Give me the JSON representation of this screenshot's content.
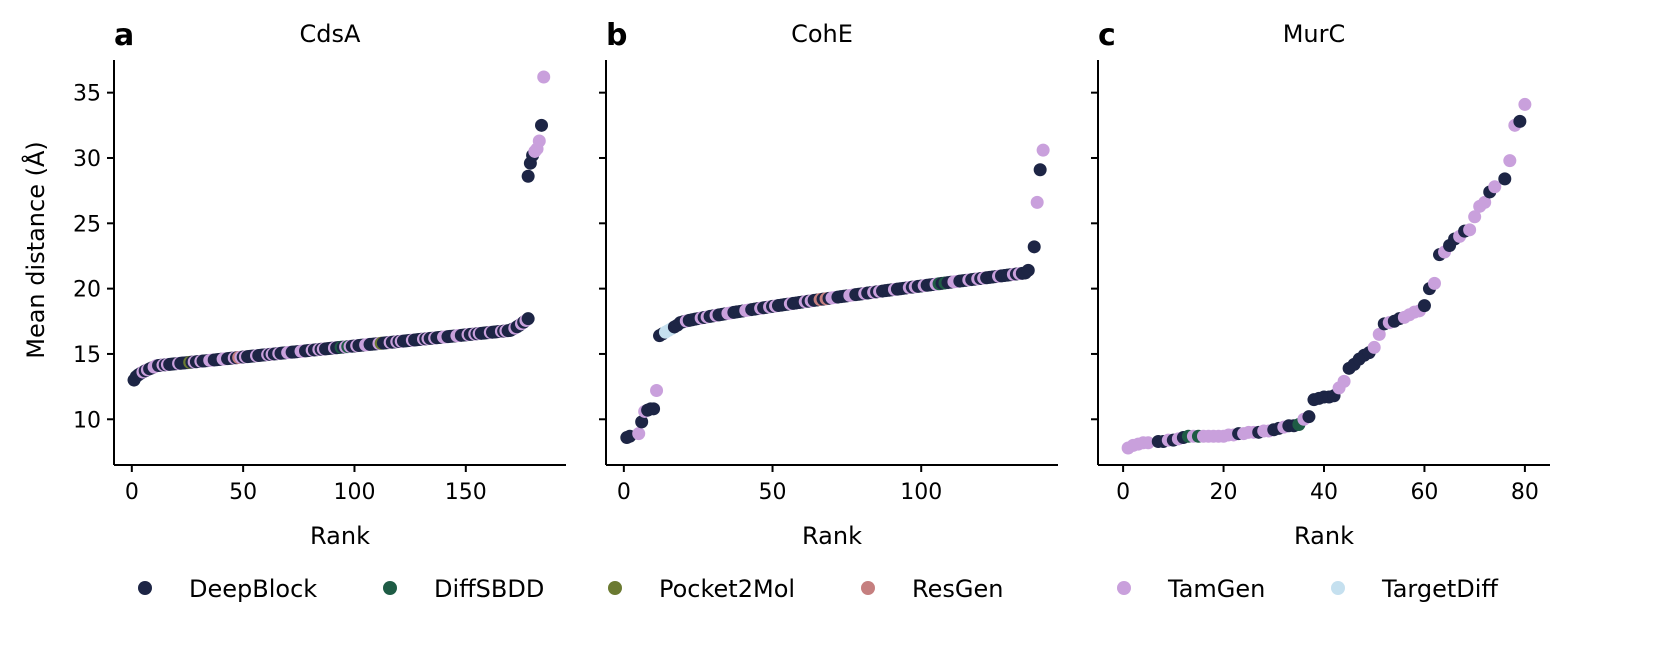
{
  "chart_data": {
    "type": "scatter",
    "ylabel": "Mean distance (Å)",
    "xlabel": "Rank",
    "series_names": [
      "DeepBlock",
      "DiffSBDD",
      "Pocket2Mol",
      "ResGen",
      "TamGen",
      "TargetDiff"
    ],
    "colors": {
      "DeepBlock": "#1d2545",
      "DiffSBDD": "#1e5c45",
      "Pocket2Mol": "#6b7a31",
      "ResGen": "#c57f7f",
      "TamGen": "#c9a0dc",
      "TargetDiff": "#c5e0ef"
    },
    "legend_position": "bottom",
    "ylim": [
      6.5,
      37.5
    ],
    "yticks": [
      10,
      15,
      20,
      25,
      30,
      35
    ],
    "panels": [
      {
        "letter": "a",
        "title": "CdsA",
        "xlim": [
          -8,
          195
        ],
        "xticks": [
          0,
          50,
          100,
          150
        ],
        "segments": [
          {
            "x0": 1,
            "x1": 10,
            "y0": 13.0,
            "y1": 14.0,
            "curve": 0.6
          },
          {
            "x0": 11,
            "x1": 170,
            "y0": 14.1,
            "y1": 16.8,
            "curve": 1.0
          },
          {
            "x0": 171,
            "x1": 178,
            "y0": 16.9,
            "y1": 17.7,
            "curve": 1.2
          }
        ],
        "points": [
          {
            "x": 178,
            "y": 28.6,
            "s": "DeepBlock"
          },
          {
            "x": 179,
            "y": 29.6,
            "s": "DeepBlock"
          },
          {
            "x": 180,
            "y": 30.2,
            "s": "DeepBlock"
          },
          {
            "x": 181,
            "y": 30.5,
            "s": "TamGen"
          },
          {
            "x": 182,
            "y": 30.7,
            "s": "TamGen"
          },
          {
            "x": 183,
            "y": 31.3,
            "s": "TamGen"
          },
          {
            "x": 184,
            "y": 32.5,
            "s": "DeepBlock"
          },
          {
            "x": 185,
            "y": 36.2,
            "s": "TamGen"
          }
        ],
        "special": [
          {
            "x": 26,
            "s": "Pocket2Mol"
          },
          {
            "x": 48,
            "s": "ResGen"
          },
          {
            "x": 94,
            "s": "DiffSBDD"
          },
          {
            "x": 97,
            "s": "DiffSBDD"
          },
          {
            "x": 112,
            "s": "Pocket2Mol"
          }
        ]
      },
      {
        "letter": "b",
        "title": "CohE",
        "xlim": [
          -6,
          146
        ],
        "xticks": [
          0,
          50,
          100
        ],
        "segments": [
          {
            "x0": 12,
            "x1": 18,
            "y0": 16.4,
            "y1": 17.2,
            "curve": 1.0
          },
          {
            "x0": 19,
            "x1": 135,
            "y0": 17.4,
            "y1": 21.2,
            "curve": 0.85
          }
        ],
        "points": [
          {
            "x": 1,
            "y": 8.6,
            "s": "DeepBlock"
          },
          {
            "x": 2,
            "y": 8.7,
            "s": "DeepBlock"
          },
          {
            "x": 5,
            "y": 8.9,
            "s": "TamGen"
          },
          {
            "x": 6,
            "y": 9.8,
            "s": "DeepBlock"
          },
          {
            "x": 7,
            "y": 10.6,
            "s": "TamGen"
          },
          {
            "x": 8,
            "y": 10.7,
            "s": "DeepBlock"
          },
          {
            "x": 9,
            "y": 10.8,
            "s": "DeepBlock"
          },
          {
            "x": 10,
            "y": 10.8,
            "s": "DeepBlock"
          },
          {
            "x": 11,
            "y": 12.2,
            "s": "TamGen"
          },
          {
            "x": 136,
            "y": 21.4,
            "s": "DeepBlock"
          },
          {
            "x": 138,
            "y": 23.2,
            "s": "DeepBlock"
          },
          {
            "x": 139,
            "y": 26.6,
            "s": "TamGen"
          },
          {
            "x": 140,
            "y": 29.1,
            "s": "DeepBlock"
          },
          {
            "x": 141,
            "y": 30.6,
            "s": "TamGen"
          }
        ],
        "special": [
          {
            "x": 14,
            "s": "TargetDiff"
          },
          {
            "x": 15,
            "s": "TargetDiff"
          },
          {
            "x": 16,
            "s": "TargetDiff"
          },
          {
            "x": 66,
            "s": "ResGen"
          },
          {
            "x": 68,
            "s": "ResGen"
          },
          {
            "x": 106,
            "s": "DiffSBDD"
          },
          {
            "x": 108,
            "s": "DiffSBDD"
          }
        ]
      },
      {
        "letter": "c",
        "title": "MurC",
        "xlim": [
          -5,
          85
        ],
        "xticks": [
          0,
          20,
          40,
          60,
          80
        ],
        "segments": [],
        "points": [
          {
            "x": 1,
            "y": 7.8,
            "s": "TamGen"
          },
          {
            "x": 2,
            "y": 8.0,
            "s": "TamGen"
          },
          {
            "x": 3,
            "y": 8.1,
            "s": "TamGen"
          },
          {
            "x": 4,
            "y": 8.2,
            "s": "TamGen"
          },
          {
            "x": 5,
            "y": 8.2,
            "s": "TamGen"
          },
          {
            "x": 7,
            "y": 8.3,
            "s": "DeepBlock"
          },
          {
            "x": 8,
            "y": 8.3,
            "s": "DeepBlock"
          },
          {
            "x": 9,
            "y": 8.4,
            "s": "TamGen"
          },
          {
            "x": 10,
            "y": 8.4,
            "s": "DeepBlock"
          },
          {
            "x": 11,
            "y": 8.5,
            "s": "TamGen"
          },
          {
            "x": 12,
            "y": 8.6,
            "s": "DeepBlock"
          },
          {
            "x": 13,
            "y": 8.7,
            "s": "DiffSBDD"
          },
          {
            "x": 14,
            "y": 8.7,
            "s": "TamGen"
          },
          {
            "x": 15,
            "y": 8.7,
            "s": "DiffSBDD"
          },
          {
            "x": 16,
            "y": 8.7,
            "s": "TamGen"
          },
          {
            "x": 17,
            "y": 8.7,
            "s": "TamGen"
          },
          {
            "x": 18,
            "y": 8.7,
            "s": "TamGen"
          },
          {
            "x": 19,
            "y": 8.7,
            "s": "TamGen"
          },
          {
            "x": 20,
            "y": 8.7,
            "s": "TamGen"
          },
          {
            "x": 21,
            "y": 8.8,
            "s": "TamGen"
          },
          {
            "x": 22,
            "y": 8.8,
            "s": "TamGen"
          },
          {
            "x": 23,
            "y": 8.9,
            "s": "DeepBlock"
          },
          {
            "x": 24,
            "y": 8.9,
            "s": "TamGen"
          },
          {
            "x": 25,
            "y": 9.0,
            "s": "TamGen"
          },
          {
            "x": 26,
            "y": 9.0,
            "s": "TamGen"
          },
          {
            "x": 27,
            "y": 9.0,
            "s": "DeepBlock"
          },
          {
            "x": 28,
            "y": 9.1,
            "s": "TamGen"
          },
          {
            "x": 29,
            "y": 9.1,
            "s": "TamGen"
          },
          {
            "x": 30,
            "y": 9.2,
            "s": "DeepBlock"
          },
          {
            "x": 31,
            "y": 9.3,
            "s": "DeepBlock"
          },
          {
            "x": 32,
            "y": 9.4,
            "s": "TamGen"
          },
          {
            "x": 33,
            "y": 9.5,
            "s": "DeepBlock"
          },
          {
            "x": 34,
            "y": 9.5,
            "s": "DeepBlock"
          },
          {
            "x": 35,
            "y": 9.6,
            "s": "DiffSBDD"
          },
          {
            "x": 36,
            "y": 10.0,
            "s": "TamGen"
          },
          {
            "x": 37,
            "y": 10.2,
            "s": "DeepBlock"
          },
          {
            "x": 38,
            "y": 11.5,
            "s": "DeepBlock"
          },
          {
            "x": 39,
            "y": 11.6,
            "s": "DeepBlock"
          },
          {
            "x": 40,
            "y": 11.7,
            "s": "DeepBlock"
          },
          {
            "x": 41,
            "y": 11.7,
            "s": "DeepBlock"
          },
          {
            "x": 42,
            "y": 11.8,
            "s": "DeepBlock"
          },
          {
            "x": 43,
            "y": 12.4,
            "s": "TamGen"
          },
          {
            "x": 44,
            "y": 12.9,
            "s": "TamGen"
          },
          {
            "x": 45,
            "y": 13.9,
            "s": "DeepBlock"
          },
          {
            "x": 46,
            "y": 14.2,
            "s": "DeepBlock"
          },
          {
            "x": 47,
            "y": 14.6,
            "s": "DeepBlock"
          },
          {
            "x": 48,
            "y": 14.9,
            "s": "DeepBlock"
          },
          {
            "x": 49,
            "y": 15.1,
            "s": "DeepBlock"
          },
          {
            "x": 50,
            "y": 15.5,
            "s": "TamGen"
          },
          {
            "x": 51,
            "y": 16.5,
            "s": "TamGen"
          },
          {
            "x": 52,
            "y": 17.3,
            "s": "DeepBlock"
          },
          {
            "x": 53,
            "y": 17.4,
            "s": "TamGen"
          },
          {
            "x": 54,
            "y": 17.5,
            "s": "DeepBlock"
          },
          {
            "x": 55,
            "y": 17.7,
            "s": "DeepBlock"
          },
          {
            "x": 56,
            "y": 17.8,
            "s": "TamGen"
          },
          {
            "x": 57,
            "y": 18.0,
            "s": "TamGen"
          },
          {
            "x": 58,
            "y": 18.2,
            "s": "TamGen"
          },
          {
            "x": 59,
            "y": 18.3,
            "s": "TamGen"
          },
          {
            "x": 60,
            "y": 18.7,
            "s": "DeepBlock"
          },
          {
            "x": 61,
            "y": 20.0,
            "s": "DeepBlock"
          },
          {
            "x": 62,
            "y": 20.4,
            "s": "TamGen"
          },
          {
            "x": 63,
            "y": 22.6,
            "s": "DeepBlock"
          },
          {
            "x": 64,
            "y": 22.8,
            "s": "TamGen"
          },
          {
            "x": 65,
            "y": 23.3,
            "s": "DeepBlock"
          },
          {
            "x": 66,
            "y": 23.8,
            "s": "DeepBlock"
          },
          {
            "x": 67,
            "y": 24.0,
            "s": "TamGen"
          },
          {
            "x": 68,
            "y": 24.4,
            "s": "DeepBlock"
          },
          {
            "x": 69,
            "y": 24.5,
            "s": "TamGen"
          },
          {
            "x": 70,
            "y": 25.5,
            "s": "TamGen"
          },
          {
            "x": 71,
            "y": 26.3,
            "s": "TamGen"
          },
          {
            "x": 72,
            "y": 26.6,
            "s": "TamGen"
          },
          {
            "x": 73,
            "y": 27.4,
            "s": "DeepBlock"
          },
          {
            "x": 74,
            "y": 27.8,
            "s": "TamGen"
          },
          {
            "x": 76,
            "y": 28.4,
            "s": "DeepBlock"
          },
          {
            "x": 77,
            "y": 29.8,
            "s": "TamGen"
          },
          {
            "x": 78,
            "y": 32.5,
            "s": "TamGen"
          },
          {
            "x": 79,
            "y": 32.8,
            "s": "DeepBlock"
          },
          {
            "x": 80,
            "y": 34.1,
            "s": "TamGen"
          }
        ],
        "special": []
      }
    ]
  }
}
